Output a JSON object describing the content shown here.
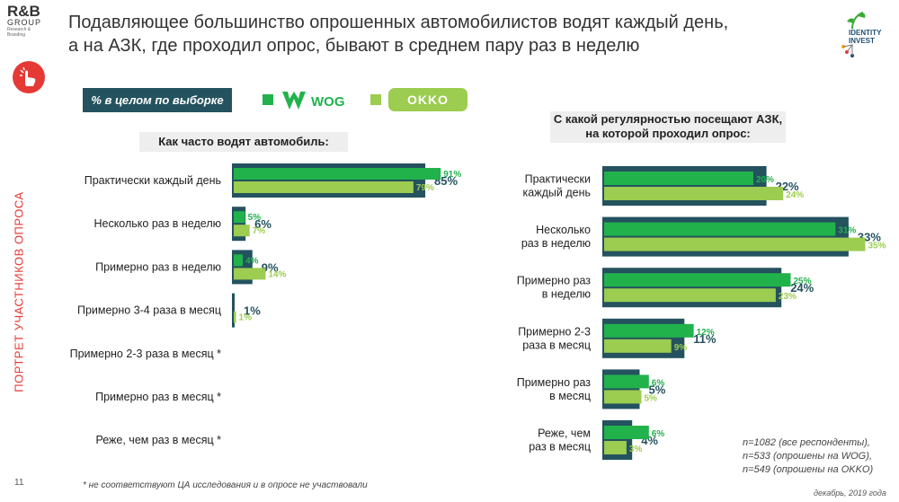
{
  "header": {
    "logo_rb": "R&B",
    "logo_group": "GROUP",
    "logo_sub": "Research & Branding",
    "title_line1": "Подавляющее большинство опрошенных автомобилистов водят каждый день,",
    "title_line2": "а на АЗК, где проходил опрос, бывают в среднем пару раз в неделю",
    "logo_ii_line1": "IDENTITY",
    "logo_ii_line2": "INVEST"
  },
  "sidebar": {
    "vertical_label": "ПОРТРЕТ УЧАСТНИКОВ ОПРОСА",
    "page_number": "11"
  },
  "legend": {
    "total_label": "% в целом по выборке",
    "wog_label": "WOG",
    "okko_label": "OKKO"
  },
  "colors": {
    "total": "#24525f",
    "wog": "#22b24c",
    "okko": "#9ccc50",
    "accent": "#e53935"
  },
  "icons": {
    "hand": "hand-pointer-icon",
    "plant": "plant-icon"
  },
  "chart_data": [
    {
      "type": "bar",
      "title": "Как часто водят автомобиль:",
      "categories": [
        "Практически каждый день",
        "Несколько раз в неделю",
        "Примерно раз в неделю",
        "Примерно 3-4 раза в месяц",
        "Примерно 2-3 раза в месяц *",
        "Примерно раз в месяц *",
        "Реже, чем раз в месяц *"
      ],
      "series": [
        {
          "name": "% в целом по выборке",
          "values": [
            85,
            6,
            9,
            1,
            null,
            null,
            null
          ]
        },
        {
          "name": "WOG",
          "values": [
            91,
            5,
            4,
            null,
            null,
            null,
            null
          ]
        },
        {
          "name": "OKKO",
          "values": [
            79,
            7,
            14,
            1,
            null,
            null,
            null
          ]
        }
      ],
      "xlim": [
        0,
        100
      ]
    },
    {
      "type": "bar",
      "title": "С какой регулярностью посещают АЗК, на которой проходил опрос:",
      "categories": [
        "Практически каждый день",
        "Несколько раз в неделю",
        "Примерно раз в неделю",
        "Примерно 2-3 раза в месяц",
        "Примерно раз в месяц",
        "Реже, чем раз в месяц"
      ],
      "series": [
        {
          "name": "% в целом по выборке",
          "values": [
            22,
            33,
            24,
            11,
            5,
            4
          ]
        },
        {
          "name": "WOG",
          "values": [
            20,
            31,
            25,
            12,
            6,
            6
          ]
        },
        {
          "name": "OKKO",
          "values": [
            24,
            35,
            23,
            9,
            5,
            3
          ]
        }
      ],
      "xlim": [
        0,
        100
      ]
    }
  ],
  "notes": {
    "footnote": "* не соответствуют ЦА исследования и в опросе не участвовали",
    "n_total": "n=1082 (все респонденты),",
    "n_wog": "n=533 (опрошены на WOG),",
    "n_okko": "n=549 (опрошены на OKKO)",
    "date": "декабрь, 2019 года"
  }
}
